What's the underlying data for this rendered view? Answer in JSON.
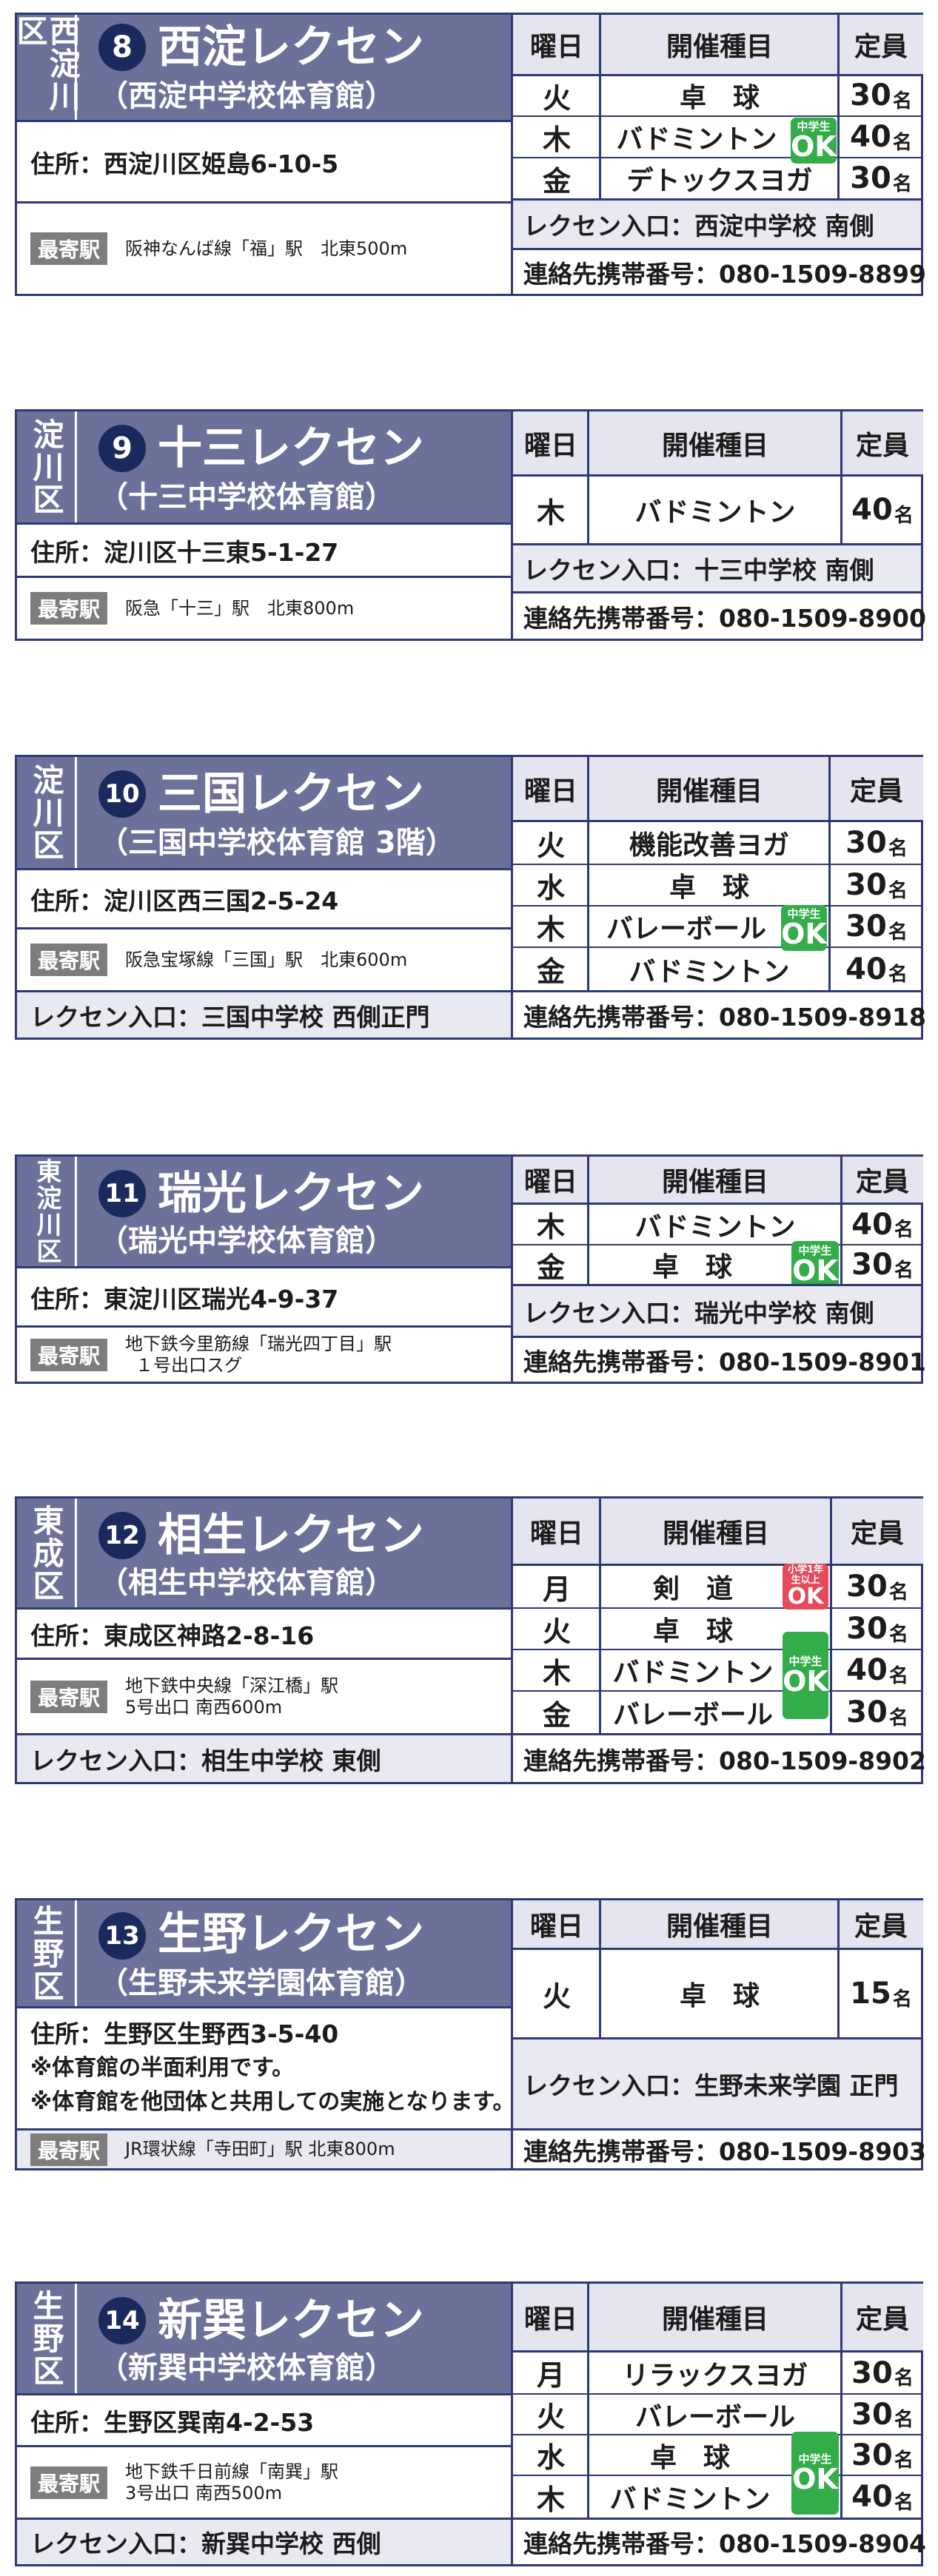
{
  "labels": {
    "day": "曜日",
    "activity": "開催種目",
    "capacity": "定員",
    "capacity_unit": "名",
    "station_badge": "最寄駅",
    "jhs_top": "中学生",
    "ok": "OK"
  },
  "cards": [
    {
      "ward": "西淀川区",
      "number": "8",
      "name": "西淀レクセン",
      "sub": "（西淀中学校体育館）",
      "address": "住所：西淀川区姫島6-10-5",
      "station": "阪神なんば線「福」駅　北東500m",
      "entrance": "レクセン入口：西淀中学校 南側",
      "contact": "連絡先携帯番号：080-1509-8899",
      "rows": [
        {
          "day": "火",
          "activity": "卓　球",
          "cap": "30"
        },
        {
          "day": "木",
          "activity": "バドミントン",
          "cap": "40"
        },
        {
          "day": "金",
          "activity": "デトックスヨガ",
          "cap": "30"
        }
      ]
    },
    {
      "ward": "淀川区",
      "number": "9",
      "name": "十三レクセン",
      "sub": "（十三中学校体育館）",
      "address": "住所：淀川区十三東5-1-27",
      "station": "阪急「十三」駅　北東800m",
      "entrance": "レクセン入口：十三中学校 南側",
      "contact": "連絡先携帯番号：080-1509-8900",
      "rows": [
        {
          "day": "木",
          "activity": "バドミントン",
          "cap": "40"
        }
      ]
    },
    {
      "ward": "淀川区",
      "number": "10",
      "name": "三国レクセン",
      "sub": "（三国中学校体育館 3階）",
      "address": "住所：淀川区西三国2-5-24",
      "station": "阪急宝塚線「三国」駅　北東600m",
      "entrance": "レクセン入口：三国中学校 西側正門",
      "contact": "連絡先携帯番号：080-1509-8918",
      "rows": [
        {
          "day": "火",
          "activity": "機能改善ヨガ",
          "cap": "30"
        },
        {
          "day": "水",
          "activity": "卓　球",
          "cap": "30"
        },
        {
          "day": "木",
          "activity": "バレーボール",
          "cap": "30"
        },
        {
          "day": "金",
          "activity": "バドミントン",
          "cap": "40"
        }
      ]
    },
    {
      "ward": "東淀川区",
      "number": "11",
      "name": "瑞光レクセン",
      "sub": "（瑞光中学校体育館）",
      "address": "住所：東淀川区瑞光4-9-37",
      "station_line1": "地下鉄今里筋線「瑞光四丁目」駅",
      "station_line2": "１号出口スグ",
      "entrance": "レクセン入口：瑞光中学校 南側",
      "contact": "連絡先携帯番号：080-1509-8901",
      "rows": [
        {
          "day": "木",
          "activity": "バドミントン",
          "cap": "40"
        },
        {
          "day": "金",
          "activity": "卓　球",
          "cap": "30"
        }
      ]
    },
    {
      "ward": "東成区",
      "number": "12",
      "name": "相生レクセン",
      "sub": "（相生中学校体育館）",
      "address": "住所：東成区神路2-8-16",
      "station_line1": "地下鉄中央線「深江橋」駅",
      "station_line2": "5号出口 南西600m",
      "entrance": "レクセン入口：相生中学校 東側",
      "contact": "連絡先携帯番号：080-1509-8902",
      "elem_top": "小学1年生以上",
      "rows": [
        {
          "day": "月",
          "activity": "剣　道",
          "cap": "30"
        },
        {
          "day": "火",
          "activity": "卓　球",
          "cap": "30"
        },
        {
          "day": "木",
          "activity": "バドミントン",
          "cap": "40"
        },
        {
          "day": "金",
          "activity": "バレーボール",
          "cap": "30"
        }
      ]
    },
    {
      "ward": "生野区",
      "number": "13",
      "name": "生野レクセン",
      "sub": "（生野未来学園体育館）",
      "address": "住所：生野区生野西3-5-40",
      "note1": "※体育館の半面利用です。",
      "note2": "※体育館を他団体と共用しての実施となります。",
      "station": "JR環状線「寺田町」駅 北東800m",
      "entrance": "レクセン入口：生野未来学園 正門",
      "contact": "連絡先携帯番号：080-1509-8903",
      "rows": [
        {
          "day": "火",
          "activity": "卓　球",
          "cap": "15"
        }
      ]
    },
    {
      "ward": "生野区",
      "number": "14",
      "name": "新巽レクセン",
      "sub": "（新巽中学校体育館）",
      "address": "住所：生野区巽南4-2-53",
      "station_line1": "地下鉄千日前線「南巽」駅",
      "station_line2": "3号出口 南西500m",
      "entrance": "レクセン入口：新巽中学校 西側",
      "contact": "連絡先携帯番号：080-1509-8904",
      "rows": [
        {
          "day": "月",
          "activity": "リラックスヨガ",
          "cap": "30"
        },
        {
          "day": "火",
          "activity": "バレーボール",
          "cap": "30"
        },
        {
          "day": "水",
          "activity": "卓　球",
          "cap": "30"
        },
        {
          "day": "木",
          "activity": "バドミントン",
          "cap": "40"
        }
      ]
    }
  ]
}
